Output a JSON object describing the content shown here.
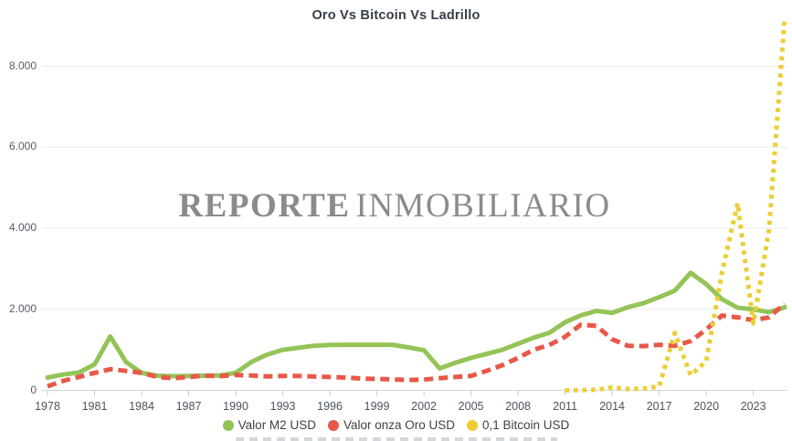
{
  "title": "Oro Vs Bitcoin Vs Ladrillo",
  "watermark": {
    "bold": "REPORTE",
    "regular": "INMOBILIARIO"
  },
  "chart_data": {
    "type": "line",
    "x": [
      1978,
      1979,
      1980,
      1981,
      1982,
      1983,
      1984,
      1985,
      1986,
      1987,
      1988,
      1989,
      1990,
      1991,
      1992,
      1993,
      1994,
      1995,
      1996,
      1997,
      1998,
      1999,
      2000,
      2001,
      2002,
      2003,
      2004,
      2005,
      2006,
      2007,
      2008,
      2009,
      2010,
      2011,
      2012,
      2013,
      2014,
      2015,
      2016,
      2017,
      2018,
      2019,
      2020,
      2021,
      2022,
      2023,
      2024,
      2025
    ],
    "series": [
      {
        "name": "Valor M2 USD",
        "color": "#94c457",
        "style": "solid",
        "values": [
          315,
          390,
          440,
          640,
          1330,
          700,
          430,
          360,
          350,
          355,
          360,
          370,
          430,
          700,
          880,
          1000,
          1050,
          1100,
          1120,
          1125,
          1125,
          1125,
          1125,
          1060,
          990,
          540,
          680,
          800,
          900,
          1000,
          1150,
          1300,
          1420,
          1680,
          1850,
          1960,
          1910,
          2050,
          2150,
          2300,
          2460,
          2900,
          2620,
          2250,
          2040,
          2000,
          1930,
          2050
        ]
      },
      {
        "name": "Valor onza Oro USD",
        "color": "#e85849",
        "style": "dashed",
        "values": [
          100,
          235,
          330,
          430,
          520,
          480,
          430,
          330,
          300,
          330,
          360,
          350,
          380,
          365,
          345,
          355,
          355,
          340,
          330,
          315,
          290,
          280,
          270,
          255,
          265,
          300,
          330,
          355,
          480,
          620,
          800,
          1000,
          1120,
          1320,
          1620,
          1590,
          1260,
          1100,
          1090,
          1125,
          1100,
          1215,
          1500,
          1845,
          1800,
          1730,
          1800,
          2140
        ]
      },
      {
        "name": "0,1 Bitcoin USD",
        "color": "#ecce33",
        "style": "dotted",
        "values": [
          null,
          null,
          null,
          null,
          null,
          null,
          null,
          null,
          null,
          null,
          null,
          null,
          null,
          null,
          null,
          null,
          null,
          null,
          null,
          null,
          null,
          null,
          null,
          null,
          null,
          null,
          null,
          null,
          null,
          null,
          null,
          null,
          null,
          3,
          5,
          13,
          76,
          32,
          43,
          96,
          1416,
          374,
          719,
          2900,
          4620,
          1655,
          3950,
          9200
        ]
      }
    ],
    "ylim": [
      0,
      9500
    ],
    "yticks": [
      0,
      2000,
      4000,
      6000,
      8000
    ],
    "ytick_labels": [
      "0",
      "2.000",
      "4.000",
      "6.000",
      "8.000"
    ],
    "xtick_years": [
      1978,
      1981,
      1984,
      1987,
      1990,
      1993,
      1996,
      1999,
      2002,
      2005,
      2008,
      2011,
      2014,
      2017,
      2020,
      2023
    ],
    "grid": "horizontal",
    "legend_position": "bottom",
    "colors": {
      "grid": "#ebebeb",
      "axis_line": "#d6d6d6",
      "tick": "#c8c8c8",
      "axis_text": "#4b545d",
      "title_text": "#343e48",
      "watermark_text": "#8b8b8b"
    }
  }
}
